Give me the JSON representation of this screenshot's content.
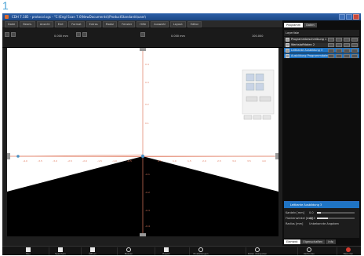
{
  "figure_number": "1",
  "window": {
    "title": "CDH 7.185 - protocol.sgs - \"C:\\Engl Scan 7.0\\NewDocuments\\\\ProductStandards\\user\\",
    "controls": [
      "minimize",
      "maximize",
      "close"
    ]
  },
  "menu": {
    "items": [
      "Datei",
      "Bearb.",
      "Ansicht",
      "Einf.",
      "Format",
      "Extras",
      "Modul",
      "Fenster",
      "Hilfe",
      "Auswahl",
      "Layout",
      "Editor"
    ]
  },
  "toolbar": {
    "readout_left": "0.000 mm",
    "readout_center": "0.000 mm",
    "readout_right": "100.000"
  },
  "viewport": {
    "y_ticks": [
      "0.4",
      "0.3",
      "0.2",
      "0.1",
      "-0.1",
      "-0.2",
      "-0.3",
      "-0.4"
    ],
    "x_ticks": [
      "-4.0",
      "-3.5",
      "-3.0",
      "-2.5",
      "-2.0",
      "-1.5",
      "-1.0",
      "-0.5",
      "0.5",
      "1.0",
      "1.5",
      "2.0",
      "2.5",
      "3.0",
      "3.5",
      "4.0"
    ],
    "colors": {
      "axis": "#e07a5f",
      "fill": "#000000",
      "control_point": "#4a90c2"
    }
  },
  "sidebar": {
    "tabs": [
      {
        "label": "Programm",
        "active": true
      },
      {
        "label": "Daten",
        "active": false
      }
    ],
    "header": "Layerliste",
    "layers": [
      {
        "name": "Programmbeschreibung 1",
        "selected": false
      },
      {
        "name": "Werkstoffdaten 2",
        "selected": false
      },
      {
        "name": "Leitkante Ausbildung 3",
        "selected": true
      },
      {
        "name": "Ausbildung Programmdaten",
        "selected": true
      }
    ],
    "properties": {
      "title": "Leitkante Ausbildung 3",
      "rows": [
        {
          "label": "Kanteln [mm]",
          "value": "0.0",
          "fill": 0.1
        },
        {
          "label": "Flankenwinkel [deg]",
          "value": "40.0",
          "fill": 0.3
        },
        {
          "label": "Radius [mm]",
          "value": "Unbekannte Angaben",
          "fill": 0
        }
      ]
    },
    "bottom_tabs": [
      {
        "label": "Element",
        "active": true
      },
      {
        "label": "Eigenschaften",
        "active": false
      },
      {
        "label": "Info",
        "active": false
      }
    ]
  },
  "taskbar": {
    "items": [
      {
        "label": "Neu",
        "icon": "new-document-icon"
      },
      {
        "label": "Speichern",
        "icon": "save-icon"
      },
      {
        "label": "Öffnen",
        "icon": "open-folder-icon"
      },
      {
        "label": "Messen",
        "icon": "measure-icon"
      },
      {
        "label": "Export",
        "icon": "export-icon"
      },
      {
        "label": "Einstellungen",
        "icon": "settings-icon"
      },
      {
        "label": "Daten übergeben",
        "icon": "upload-icon"
      },
      {
        "label": "Verbinden",
        "icon": "connect-icon"
      },
      {
        "label": "Beenden",
        "icon": "exit-icon"
      }
    ]
  }
}
